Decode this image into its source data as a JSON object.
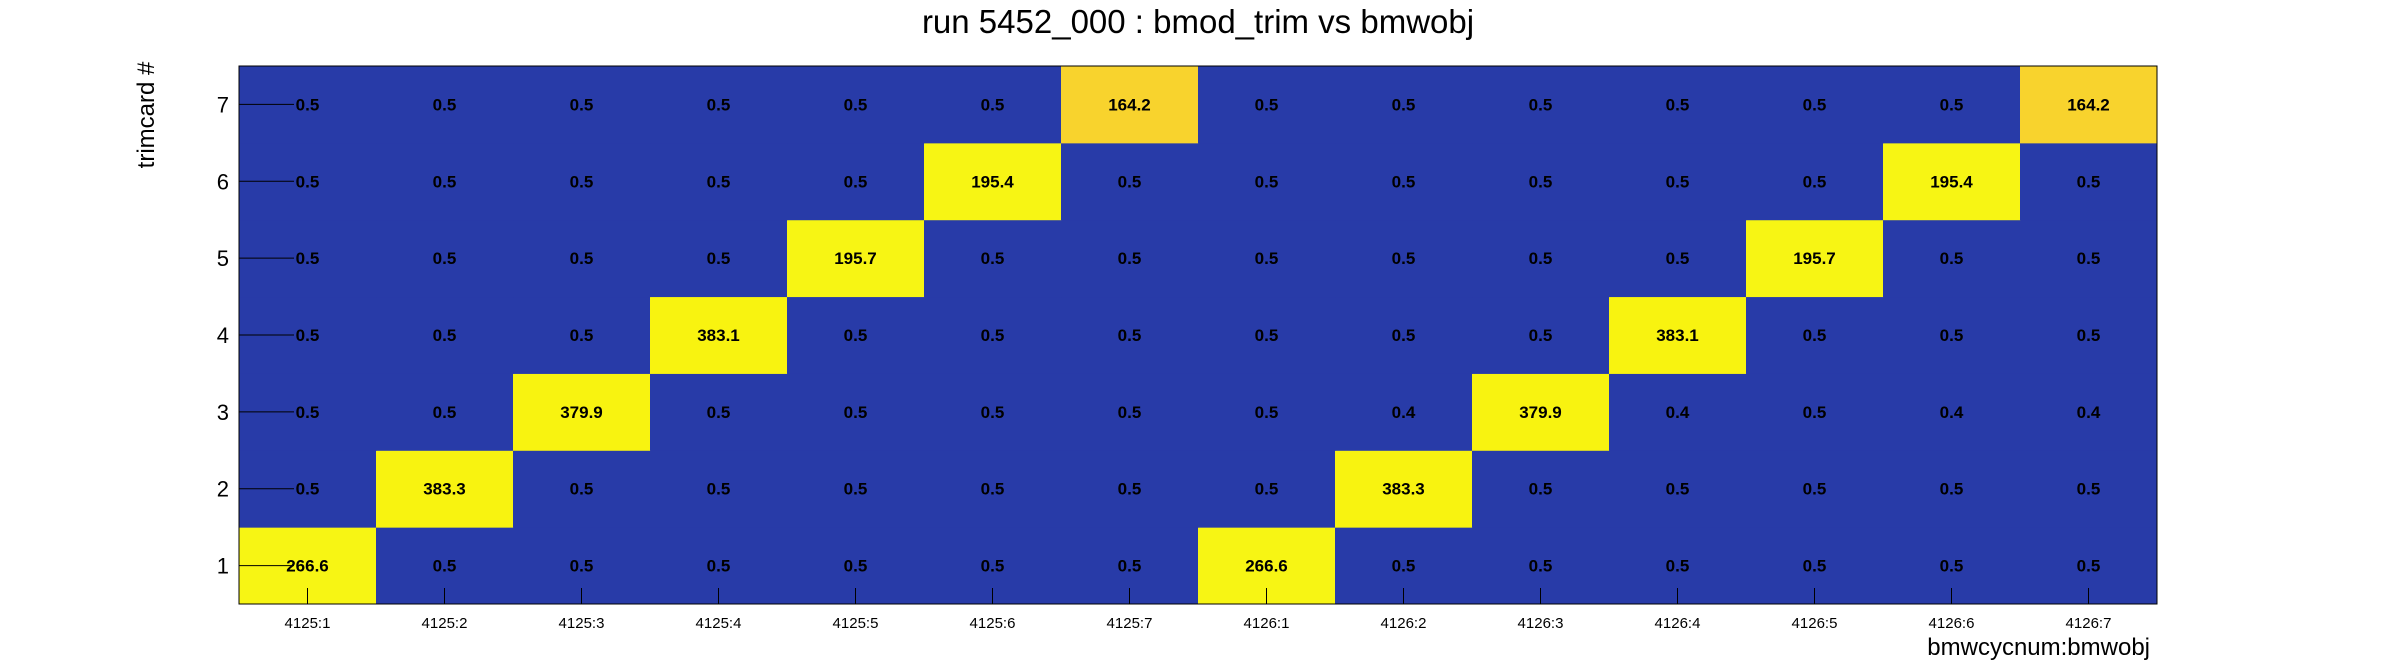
{
  "chart_data": {
    "type": "heatmap",
    "title": "run 5452_000 : bmod_trim vs bmwobj",
    "xlabel": "bmwcycnum:bmwobj",
    "ylabel": "trimcard #",
    "x_categories": [
      "4125:1",
      "4125:2",
      "4125:3",
      "4125:4",
      "4125:5",
      "4125:6",
      "4125:7",
      "4126:1",
      "4126:2",
      "4126:3",
      "4126:4",
      "4126:5",
      "4126:6",
      "4126:7"
    ],
    "y_categories": [
      "1",
      "2",
      "3",
      "4",
      "5",
      "6",
      "7"
    ],
    "values": [
      [
        266.6,
        0.5,
        0.5,
        0.5,
        0.5,
        0.5,
        0.5,
        266.6,
        0.5,
        0.5,
        0.5,
        0.5,
        0.5,
        0.5
      ],
      [
        0.5,
        383.3,
        0.5,
        0.5,
        0.5,
        0.5,
        0.5,
        0.5,
        383.3,
        0.5,
        0.5,
        0.5,
        0.5,
        0.5
      ],
      [
        0.5,
        0.5,
        379.9,
        0.5,
        0.5,
        0.5,
        0.5,
        0.5,
        0.4,
        379.9,
        0.4,
        0.5,
        0.4,
        0.4
      ],
      [
        0.5,
        0.5,
        0.5,
        383.1,
        0.5,
        0.5,
        0.5,
        0.5,
        0.5,
        0.5,
        383.1,
        0.5,
        0.5,
        0.5
      ],
      [
        0.5,
        0.5,
        0.5,
        0.5,
        195.7,
        0.5,
        0.5,
        0.5,
        0.5,
        0.5,
        0.5,
        195.7,
        0.5,
        0.5
      ],
      [
        0.5,
        0.5,
        0.5,
        0.5,
        0.5,
        195.4,
        0.5,
        0.5,
        0.5,
        0.5,
        0.5,
        0.5,
        195.4,
        0.5
      ],
      [
        0.5,
        0.5,
        0.5,
        0.5,
        0.5,
        0.5,
        164.2,
        0.5,
        0.5,
        0.5,
        0.5,
        0.5,
        0.5,
        164.2
      ]
    ],
    "colors": {
      "low": "#283ba8",
      "yellow": "#f7f514",
      "gold": "#f8d32d",
      "high_yellow": "#f8f310",
      "frame": "#000000"
    },
    "legend": false,
    "grid": false
  }
}
